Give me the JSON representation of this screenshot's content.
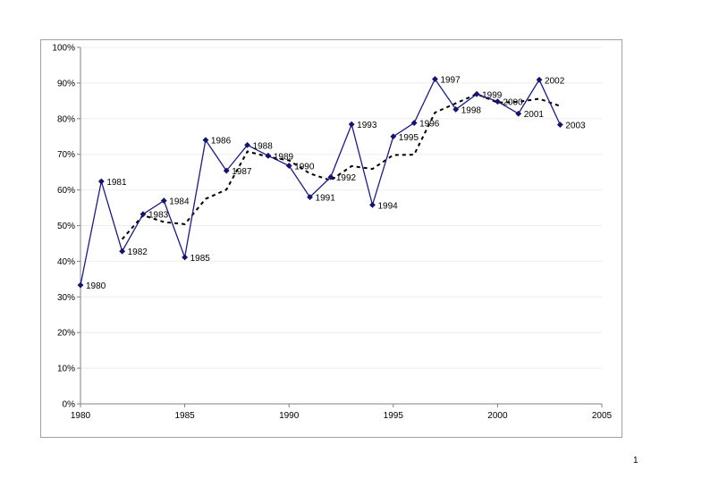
{
  "page": {
    "page_number": "1"
  },
  "colors": {
    "series_line": "#1b1b8a",
    "marker": "#14146e",
    "moving_average": "#000000",
    "gridline": "#eeeeee",
    "frame": "#a0a0a0",
    "axis": "#808080"
  },
  "chart_data": {
    "type": "line",
    "title": "",
    "xlabel": "",
    "ylabel": "",
    "xlim": [
      1980,
      2005
    ],
    "ylim": [
      0,
      1
    ],
    "x_ticks": [
      1980,
      1985,
      1990,
      1995,
      2000,
      2005
    ],
    "y_ticks": [
      0,
      0.1,
      0.2,
      0.3,
      0.4,
      0.5,
      0.6,
      0.7,
      0.8,
      0.9,
      1.0
    ],
    "y_tick_labels": [
      "0%",
      "10%",
      "20%",
      "30%",
      "40%",
      "50%",
      "60%",
      "70%",
      "80%",
      "90%",
      "100%"
    ],
    "y_format": "percent",
    "grid": "horizontal",
    "legend": "none",
    "series": [
      {
        "style": "solid line with diamond markers, labeled by year",
        "x": [
          1980,
          1981,
          1982,
          1983,
          1984,
          1985,
          1986,
          1987,
          1988,
          1989,
          1990,
          1991,
          1992,
          1993,
          1994,
          1995,
          1996,
          1997,
          1998,
          1999,
          2000,
          2001,
          2002,
          2003
        ],
        "values": [
          0.333,
          0.624,
          0.428,
          0.532,
          0.57,
          0.411,
          0.74,
          0.654,
          0.726,
          0.696,
          0.668,
          0.58,
          0.636,
          0.784,
          0.558,
          0.75,
          0.788,
          0.911,
          0.826,
          0.869,
          0.848,
          0.814,
          0.909,
          0.783
        ],
        "point_labels": [
          "1980",
          "1981",
          "1982",
          "1983",
          "1984",
          "1985",
          "1986",
          "1987",
          "1988",
          "1989",
          "1990",
          "1991",
          "1992",
          "1993",
          "1994",
          "1995",
          "1996",
          "1997",
          "1998",
          "1999",
          "2000",
          "2001",
          "2002",
          "2003"
        ]
      },
      {
        "style": "dashed trend line (moving average)",
        "x": [
          1982,
          1983,
          1984,
          1985,
          1986,
          1987,
          1988,
          1989,
          1990,
          1991,
          1992,
          1993,
          1994,
          1995,
          1996,
          1997,
          1998,
          1999,
          2000,
          2001,
          2002,
          2003
        ],
        "values": [
          0.462,
          0.529,
          0.51,
          0.504,
          0.575,
          0.601,
          0.708,
          0.693,
          0.683,
          0.646,
          0.627,
          0.667,
          0.659,
          0.698,
          0.699,
          0.817,
          0.843,
          0.869,
          0.845,
          0.847,
          0.856,
          0.835
        ]
      }
    ]
  }
}
